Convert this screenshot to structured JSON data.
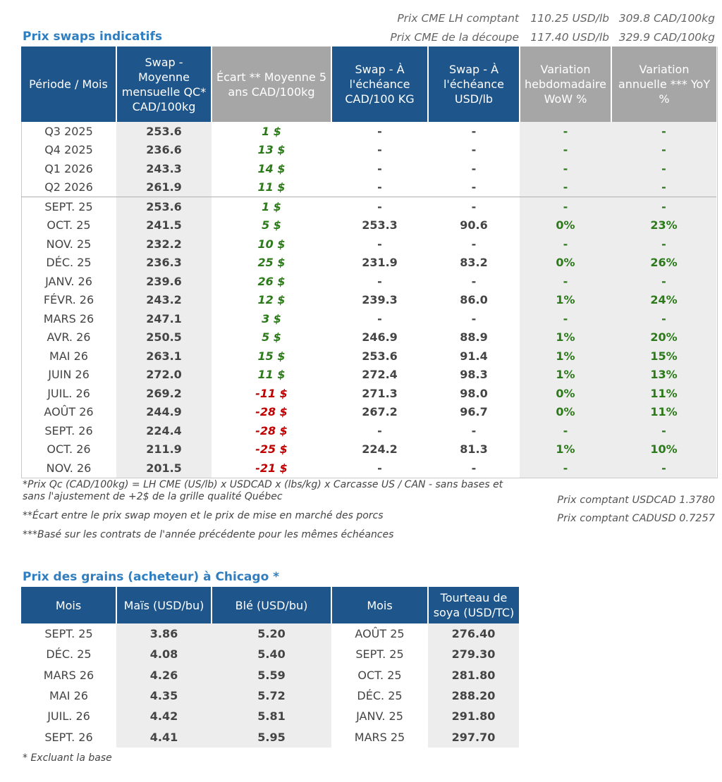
{
  "top_prices": [
    {
      "label": "Prix CME LH comptant",
      "usd": "110.25 USD/lb",
      "cad": "309.8 CAD/100kg"
    },
    {
      "label": "Prix CME de la découpe",
      "usd": "117.40 USD/lb",
      "cad": "329.9 CAD/100kg"
    }
  ],
  "swap_title": "Prix swaps indicatifs",
  "swap_headers": [
    "Période / Mois",
    "Swap - Moyenne mensuelle QC* CAD/100kg",
    "Écart ** Moyenne 5 ans CAD/100kg",
    "Swap - À l'échéance CAD/100 KG",
    "Swap - À l'échéance USD/lb",
    "Variation hebdomadaire WoW %",
    "Variation annuelle *** YoY %"
  ],
  "swap_rows": [
    {
      "period": "Q3 2025",
      "swap": "253.6",
      "ecart": "1 $",
      "cad": "-",
      "usd": "-",
      "wow": "-",
      "yoy": "-"
    },
    {
      "period": "Q4 2025",
      "swap": "236.6",
      "ecart": "13 $",
      "cad": "-",
      "usd": "-",
      "wow": "-",
      "yoy": "-"
    },
    {
      "period": "Q1 2026",
      "swap": "243.3",
      "ecart": "14 $",
      "cad": "-",
      "usd": "-",
      "wow": "-",
      "yoy": "-"
    },
    {
      "period": "Q2 2026",
      "swap": "261.9",
      "ecart": "11 $",
      "cad": "-",
      "usd": "-",
      "wow": "-",
      "yoy": "-"
    },
    {
      "period": "SEPT. 25",
      "swap": "253.6",
      "ecart": "1 $",
      "cad": "-",
      "usd": "-",
      "wow": "-",
      "yoy": "-"
    },
    {
      "period": "OCT. 25",
      "swap": "241.5",
      "ecart": "5 $",
      "cad": "253.3",
      "usd": "90.6",
      "wow": "0%",
      "yoy": "23%"
    },
    {
      "period": "NOV. 25",
      "swap": "232.2",
      "ecart": "10 $",
      "cad": "-",
      "usd": "-",
      "wow": "-",
      "yoy": "-"
    },
    {
      "period": "DÉC. 25",
      "swap": "236.3",
      "ecart": "25 $",
      "cad": "231.9",
      "usd": "83.2",
      "wow": "0%",
      "yoy": "26%"
    },
    {
      "period": "JANV. 26",
      "swap": "239.6",
      "ecart": "26 $",
      "cad": "-",
      "usd": "-",
      "wow": "-",
      "yoy": "-"
    },
    {
      "period": "FÉVR. 26",
      "swap": "243.2",
      "ecart": "12 $",
      "cad": "239.3",
      "usd": "86.0",
      "wow": "1%",
      "yoy": "24%"
    },
    {
      "period": "MARS 26",
      "swap": "247.1",
      "ecart": "3 $",
      "cad": "-",
      "usd": "-",
      "wow": "-",
      "yoy": "-"
    },
    {
      "period": "AVR. 26",
      "swap": "250.5",
      "ecart": "5 $",
      "cad": "246.9",
      "usd": "88.9",
      "wow": "1%",
      "yoy": "20%"
    },
    {
      "period": "MAI 26",
      "swap": "263.1",
      "ecart": "15 $",
      "cad": "253.6",
      "usd": "91.4",
      "wow": "1%",
      "yoy": "15%"
    },
    {
      "period": "JUIN 26",
      "swap": "272.0",
      "ecart": "11 $",
      "cad": "272.4",
      "usd": "98.3",
      "wow": "1%",
      "yoy": "13%"
    },
    {
      "period": "JUIL. 26",
      "swap": "269.2",
      "ecart": "-11 $",
      "cad": "271.3",
      "usd": "98.0",
      "wow": "0%",
      "yoy": "11%"
    },
    {
      "period": "AOÛT 26",
      "swap": "244.9",
      "ecart": "-28 $",
      "cad": "267.2",
      "usd": "96.7",
      "wow": "0%",
      "yoy": "11%"
    },
    {
      "period": "SEPT. 26",
      "swap": "224.4",
      "ecart": "-28 $",
      "cad": "-",
      "usd": "-",
      "wow": "-",
      "yoy": "-"
    },
    {
      "period": "OCT. 26",
      "swap": "211.9",
      "ecart": "-25 $",
      "cad": "224.2",
      "usd": "81.3",
      "wow": "1%",
      "yoy": "10%"
    },
    {
      "period": "NOV. 26",
      "swap": "201.5",
      "ecart": "-21 $",
      "cad": "-",
      "usd": "-",
      "wow": "-",
      "yoy": "-"
    }
  ],
  "notes": {
    "note1a": "*Prix Qc (CAD/100kg) = LH CME (US/lb) x USDCAD x (lbs/kg) x Carcasse US / CAN - sans bases et",
    "note1b": "sans l'ajustement de +2$ de la grille qualité Québec",
    "note2": "**Écart entre le prix swap moyen et le prix de mise en marché des porcs",
    "note3": "***Basé sur les contrats de l'année précédente pour les mêmes échéances",
    "fx1": "Prix comptant USDCAD 1.3780",
    "fx2": "Prix comptant CADUSD 0.7257"
  },
  "grain_title": "Prix des grains (acheteur) à Chicago *",
  "grain_headers": [
    "Mois",
    "Maïs (USD/bu)",
    "Blé (USD/bu)",
    "Mois",
    "Tourteau de soya (USD/TC)"
  ],
  "grain_rows": [
    {
      "m1": "SEPT. 25",
      "mais": "3.86",
      "ble": "5.20",
      "m2": "AOÛT 25",
      "soya": "276.40"
    },
    {
      "m1": "DÉC. 25",
      "mais": "4.08",
      "ble": "5.40",
      "m2": "SEPT. 25",
      "soya": "279.30"
    },
    {
      "m1": "MARS 26",
      "mais": "4.26",
      "ble": "5.59",
      "m2": "OCT. 25",
      "soya": "281.80"
    },
    {
      "m1": "MAI 26",
      "mais": "4.35",
      "ble": "5.72",
      "m2": "DÉC. 25",
      "soya": "288.20"
    },
    {
      "m1": "JUIL. 26",
      "mais": "4.42",
      "ble": "5.81",
      "m2": "JANV. 25",
      "soya": "291.80"
    },
    {
      "m1": "SEPT. 26",
      "mais": "4.41",
      "ble": "5.95",
      "m2": "MARS 25",
      "soya": "297.70"
    }
  ],
  "grain_note": "* Excluant la base",
  "colors": {
    "header_blue": "#1e558a",
    "header_grey": "#a6a6a6",
    "title_blue": "#2f7ec0",
    "positive_green": "#2c7a1a",
    "negative_red": "#c00000",
    "shade": "#ededed"
  }
}
